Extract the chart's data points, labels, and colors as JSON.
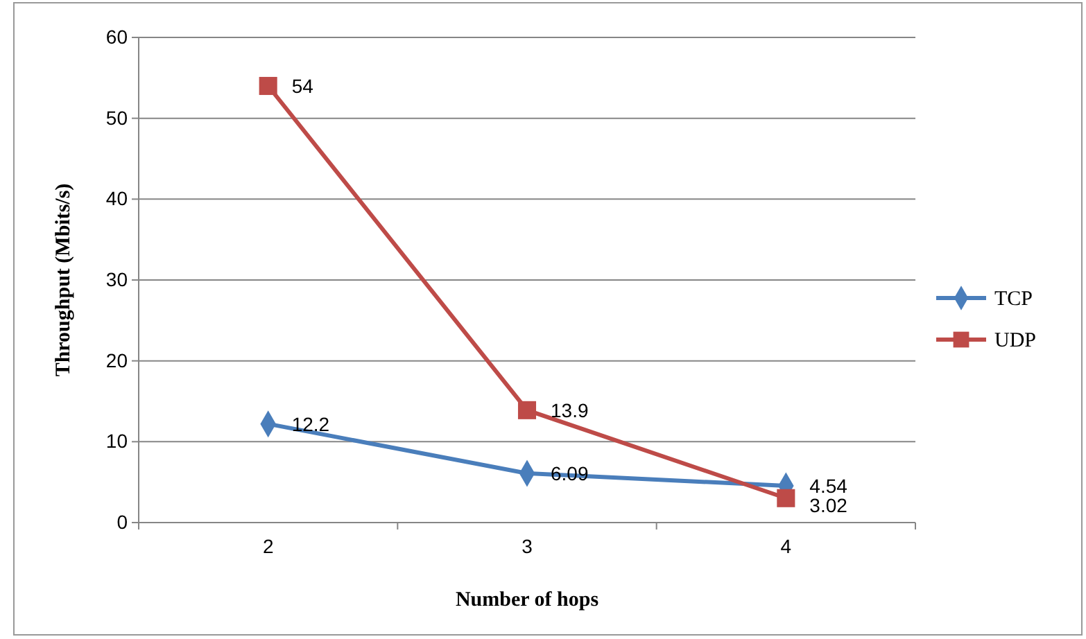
{
  "chart_data": {
    "type": "line",
    "xlabel": "Number of hops",
    "ylabel": "Throughput (Mbits/s)",
    "categories": [
      "2",
      "3",
      "4"
    ],
    "series": [
      {
        "name": "TCP",
        "color": "#4a7ebb",
        "marker": "diamond",
        "values": [
          12.2,
          6.09,
          4.54
        ]
      },
      {
        "name": "UDP",
        "color": "#be4b48",
        "marker": "square",
        "values": [
          54,
          13.9,
          3.02
        ]
      }
    ],
    "ylim": [
      0,
      60
    ],
    "yticks": [
      0,
      10,
      20,
      30,
      40,
      50,
      60
    ],
    "grid": "y",
    "legend": "right",
    "data_labels": true
  }
}
